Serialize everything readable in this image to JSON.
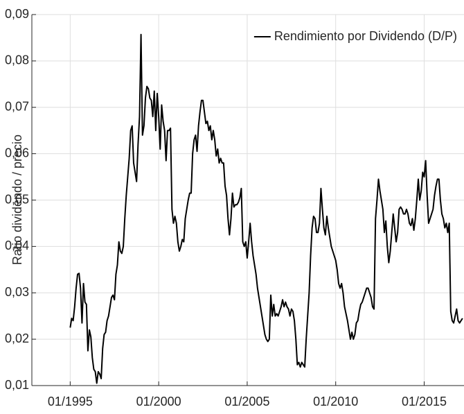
{
  "chart_data": {
    "type": "line",
    "ylabel": "Ratio dividendo / precio",
    "x": [
      "01/1995",
      "02/1995",
      "03/1995",
      "04/1995",
      "05/1995",
      "06/1995",
      "07/1995",
      "08/1995",
      "09/1995",
      "10/1995",
      "11/1995",
      "12/1995",
      "01/1996",
      "02/1996",
      "03/1996",
      "04/1996",
      "05/1996",
      "06/1996",
      "07/1996",
      "08/1996",
      "09/1996",
      "10/1996",
      "11/1996",
      "12/1996",
      "01/1997",
      "02/1997",
      "03/1997",
      "04/1997",
      "05/1997",
      "06/1997",
      "07/1997",
      "08/1997",
      "09/1997",
      "10/1997",
      "11/1997",
      "12/1997",
      "01/1998",
      "02/1998",
      "03/1998",
      "04/1998",
      "05/1998",
      "06/1998",
      "07/1998",
      "08/1998",
      "09/1998",
      "10/1998",
      "11/1998",
      "12/1998",
      "01/1999",
      "02/1999",
      "03/1999",
      "04/1999",
      "05/1999",
      "06/1999",
      "07/1999",
      "08/1999",
      "09/1999",
      "10/1999",
      "11/1999",
      "12/1999",
      "01/2000",
      "02/2000",
      "03/2000",
      "04/2000",
      "05/2000",
      "06/2000",
      "07/2000",
      "08/2000",
      "09/2000",
      "10/2000",
      "11/2000",
      "12/2000",
      "01/2001",
      "02/2001",
      "03/2001",
      "04/2001",
      "05/2001",
      "06/2001",
      "07/2001",
      "08/2001",
      "09/2001",
      "10/2001",
      "11/2001",
      "12/2001",
      "01/2002",
      "02/2002",
      "03/2002",
      "04/2002",
      "05/2002",
      "06/2002",
      "07/2002",
      "08/2002",
      "09/2002",
      "10/2002",
      "11/2002",
      "12/2002",
      "01/2003",
      "02/2003",
      "03/2003",
      "04/2003",
      "05/2003",
      "06/2003",
      "07/2003",
      "08/2003",
      "09/2003",
      "10/2003",
      "11/2003",
      "12/2003",
      "01/2004",
      "02/2004",
      "03/2004",
      "04/2004",
      "05/2004",
      "06/2004",
      "07/2004",
      "08/2004",
      "09/2004",
      "10/2004",
      "11/2004",
      "12/2004",
      "01/2005",
      "02/2005",
      "03/2005",
      "04/2005",
      "05/2005",
      "06/2005",
      "07/2005",
      "08/2005",
      "09/2005",
      "10/2005",
      "11/2005",
      "12/2005",
      "01/2006",
      "02/2006",
      "03/2006",
      "04/2006",
      "05/2006",
      "06/2006",
      "07/2006",
      "08/2006",
      "09/2006",
      "10/2006",
      "11/2006",
      "12/2006",
      "01/2007",
      "02/2007",
      "03/2007",
      "04/2007",
      "05/2007",
      "06/2007",
      "07/2007",
      "08/2007",
      "09/2007",
      "10/2007",
      "11/2007",
      "12/2007",
      "01/2008",
      "02/2008",
      "03/2008",
      "04/2008",
      "05/2008",
      "06/2008",
      "07/2008",
      "08/2008",
      "09/2008",
      "10/2008",
      "11/2008",
      "12/2008",
      "01/2009",
      "02/2009",
      "03/2009",
      "04/2009",
      "05/2009",
      "06/2009",
      "07/2009",
      "08/2009",
      "09/2009",
      "10/2009",
      "11/2009",
      "12/2009",
      "01/2010",
      "02/2010",
      "03/2010",
      "04/2010",
      "05/2010",
      "06/2010",
      "07/2010",
      "08/2010",
      "09/2010",
      "10/2010",
      "11/2010",
      "12/2010",
      "01/2011",
      "02/2011",
      "03/2011",
      "04/2011",
      "05/2011",
      "06/2011",
      "07/2011",
      "08/2011",
      "09/2011",
      "10/2011",
      "11/2011",
      "12/2011",
      "01/2012",
      "02/2012",
      "03/2012",
      "04/2012",
      "05/2012",
      "06/2012",
      "07/2012",
      "08/2012",
      "09/2012",
      "10/2012",
      "11/2012",
      "12/2012",
      "01/2013",
      "02/2013",
      "03/2013",
      "04/2013",
      "05/2013",
      "06/2013",
      "07/2013",
      "08/2013",
      "09/2013",
      "10/2013",
      "11/2013",
      "12/2013",
      "01/2014",
      "02/2014",
      "03/2014",
      "04/2014",
      "05/2014",
      "06/2014",
      "07/2014",
      "08/2014",
      "09/2014",
      "10/2014",
      "11/2014",
      "12/2014",
      "01/2015",
      "02/2015",
      "03/2015",
      "04/2015",
      "05/2015",
      "06/2015",
      "07/2015",
      "08/2015",
      "09/2015",
      "10/2015",
      "11/2015",
      "12/2015",
      "01/2016",
      "02/2016",
      "03/2016",
      "04/2016",
      "05/2016",
      "06/2016",
      "07/2016",
      "08/2016",
      "09/2016",
      "10/2016",
      "11/2016",
      "12/2016",
      "01/2017",
      "02/2017",
      "03/2017"
    ],
    "series": [
      {
        "name": "Rendimiento por Dividendo (D/P)",
        "color": "#000000",
        "values": [
          0.0225,
          0.0245,
          0.024,
          0.027,
          0.031,
          0.034,
          0.0342,
          0.031,
          0.0235,
          0.032,
          0.028,
          0.0275,
          0.0175,
          0.022,
          0.0205,
          0.016,
          0.0135,
          0.013,
          0.0105,
          0.013,
          0.0125,
          0.0115,
          0.018,
          0.021,
          0.0215,
          0.024,
          0.025,
          0.027,
          0.029,
          0.0295,
          0.0285,
          0.034,
          0.036,
          0.041,
          0.039,
          0.0385,
          0.04,
          0.046,
          0.051,
          0.055,
          0.059,
          0.065,
          0.066,
          0.058,
          0.056,
          0.054,
          0.062,
          0.068,
          0.0857,
          0.064,
          0.066,
          0.072,
          0.0745,
          0.074,
          0.072,
          0.0715,
          0.068,
          0.0735,
          0.065,
          0.073,
          0.068,
          0.061,
          0.0705,
          0.067,
          0.065,
          0.0585,
          0.065,
          0.065,
          0.0655,
          0.048,
          0.045,
          0.0465,
          0.045,
          0.041,
          0.039,
          0.04,
          0.0415,
          0.041,
          0.046,
          0.048,
          0.05,
          0.0515,
          0.0515,
          0.06,
          0.063,
          0.064,
          0.0605,
          0.066,
          0.069,
          0.0715,
          0.0715,
          0.069,
          0.0665,
          0.067,
          0.065,
          0.066,
          0.063,
          0.065,
          0.063,
          0.0595,
          0.061,
          0.058,
          0.059,
          0.058,
          0.058,
          0.053,
          0.051,
          0.046,
          0.0425,
          0.046,
          0.0515,
          0.0485,
          0.049,
          0.049,
          0.0495,
          0.0505,
          0.0525,
          0.041,
          0.04,
          0.041,
          0.0375,
          0.041,
          0.045,
          0.041,
          0.038,
          0.036,
          0.034,
          0.031,
          0.029,
          0.027,
          0.025,
          0.023,
          0.021,
          0.02,
          0.0195,
          0.02,
          0.0295,
          0.025,
          0.0275,
          0.025,
          0.0255,
          0.025,
          0.026,
          0.027,
          0.0285,
          0.027,
          0.028,
          0.027,
          0.0265,
          0.025,
          0.0265,
          0.026,
          0.024,
          0.02,
          0.0145,
          0.015,
          0.014,
          0.015,
          0.0145,
          0.014,
          0.02,
          0.025,
          0.03,
          0.038,
          0.044,
          0.0465,
          0.046,
          0.043,
          0.043,
          0.045,
          0.0525,
          0.048,
          0.044,
          0.0425,
          0.0465,
          0.044,
          0.042,
          0.04,
          0.039,
          0.038,
          0.037,
          0.035,
          0.032,
          0.031,
          0.032,
          0.03,
          0.027,
          0.0255,
          0.024,
          0.022,
          0.02,
          0.0215,
          0.02,
          0.021,
          0.0235,
          0.024,
          0.026,
          0.0275,
          0.028,
          0.029,
          0.03,
          0.031,
          0.031,
          0.03,
          0.029,
          0.027,
          0.0265,
          0.046,
          0.05,
          0.0545,
          0.052,
          0.05,
          0.048,
          0.043,
          0.0455,
          0.04,
          0.0365,
          0.039,
          0.043,
          0.047,
          0.044,
          0.041,
          0.043,
          0.048,
          0.0485,
          0.048,
          0.047,
          0.047,
          0.048,
          0.047,
          0.045,
          0.0445,
          0.046,
          0.0435,
          0.046,
          0.05,
          0.0545,
          0.05,
          0.052,
          0.056,
          0.055,
          0.0585,
          0.051,
          0.045,
          0.046,
          0.047,
          0.048,
          0.051,
          0.053,
          0.0545,
          0.0545,
          0.05,
          0.047,
          0.046,
          0.044,
          0.045,
          0.043,
          0.045,
          0.026,
          0.024,
          0.0235,
          0.025,
          0.0265,
          0.024,
          0.0235,
          0.024,
          0.0245
        ]
      }
    ],
    "xlim": [
      "11/1992",
      "04/2017"
    ],
    "xticks": [
      "01/1995",
      "01/2000",
      "01/2005",
      "01/2010",
      "01/2015"
    ],
    "ylim": [
      0.01,
      0.09
    ],
    "yticks": [
      {
        "value": 0.01,
        "label": "0,01"
      },
      {
        "value": 0.02,
        "label": "0,02"
      },
      {
        "value": 0.03,
        "label": "0,03"
      },
      {
        "value": 0.04,
        "label": "0,04"
      },
      {
        "value": 0.05,
        "label": "0,05"
      },
      {
        "value": 0.06,
        "label": "0,06"
      },
      {
        "value": 0.07,
        "label": "0,07"
      },
      {
        "value": 0.08,
        "label": "0,08"
      },
      {
        "value": 0.09,
        "label": "0,09"
      }
    ],
    "grid": true,
    "legend": "northeast"
  }
}
